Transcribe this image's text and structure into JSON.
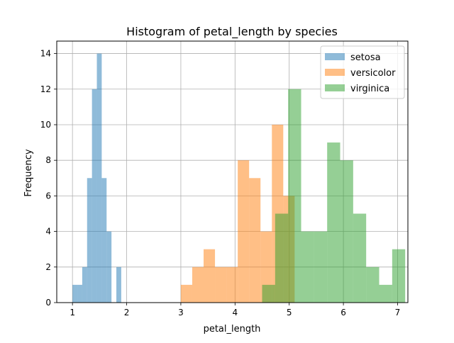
{
  "chart_data": {
    "type": "bar",
    "title": "Histogram of petal_length by species",
    "xlabel": "petal_length",
    "ylabel": "Frequency",
    "xlim": [
      0.71,
      7.19
    ],
    "ylim": [
      0,
      14.7
    ],
    "xticks": [
      1,
      2,
      3,
      4,
      5,
      6,
      7
    ],
    "yticks": [
      0,
      2,
      4,
      6,
      8,
      10,
      12,
      14
    ],
    "grid": true,
    "legend_position": "top-right",
    "series": [
      {
        "name": "setosa",
        "color": "#1f77b4",
        "bin_start": 1.0,
        "bin_width": 0.09,
        "values": [
          1,
          1,
          2,
          7,
          12,
          14,
          7,
          4,
          0,
          2
        ]
      },
      {
        "name": "versicolor",
        "color": "#ff7f0e",
        "bin_start": 3.0,
        "bin_width": 0.21,
        "values": [
          1,
          2,
          3,
          2,
          2,
          8,
          7,
          4,
          10,
          6
        ]
      },
      {
        "name": "virginica",
        "color": "#2ca02c",
        "bin_start": 4.5,
        "bin_width": 0.24,
        "values": [
          1,
          5,
          12,
          4,
          4,
          9,
          8,
          5,
          2,
          1,
          3
        ]
      }
    ]
  }
}
